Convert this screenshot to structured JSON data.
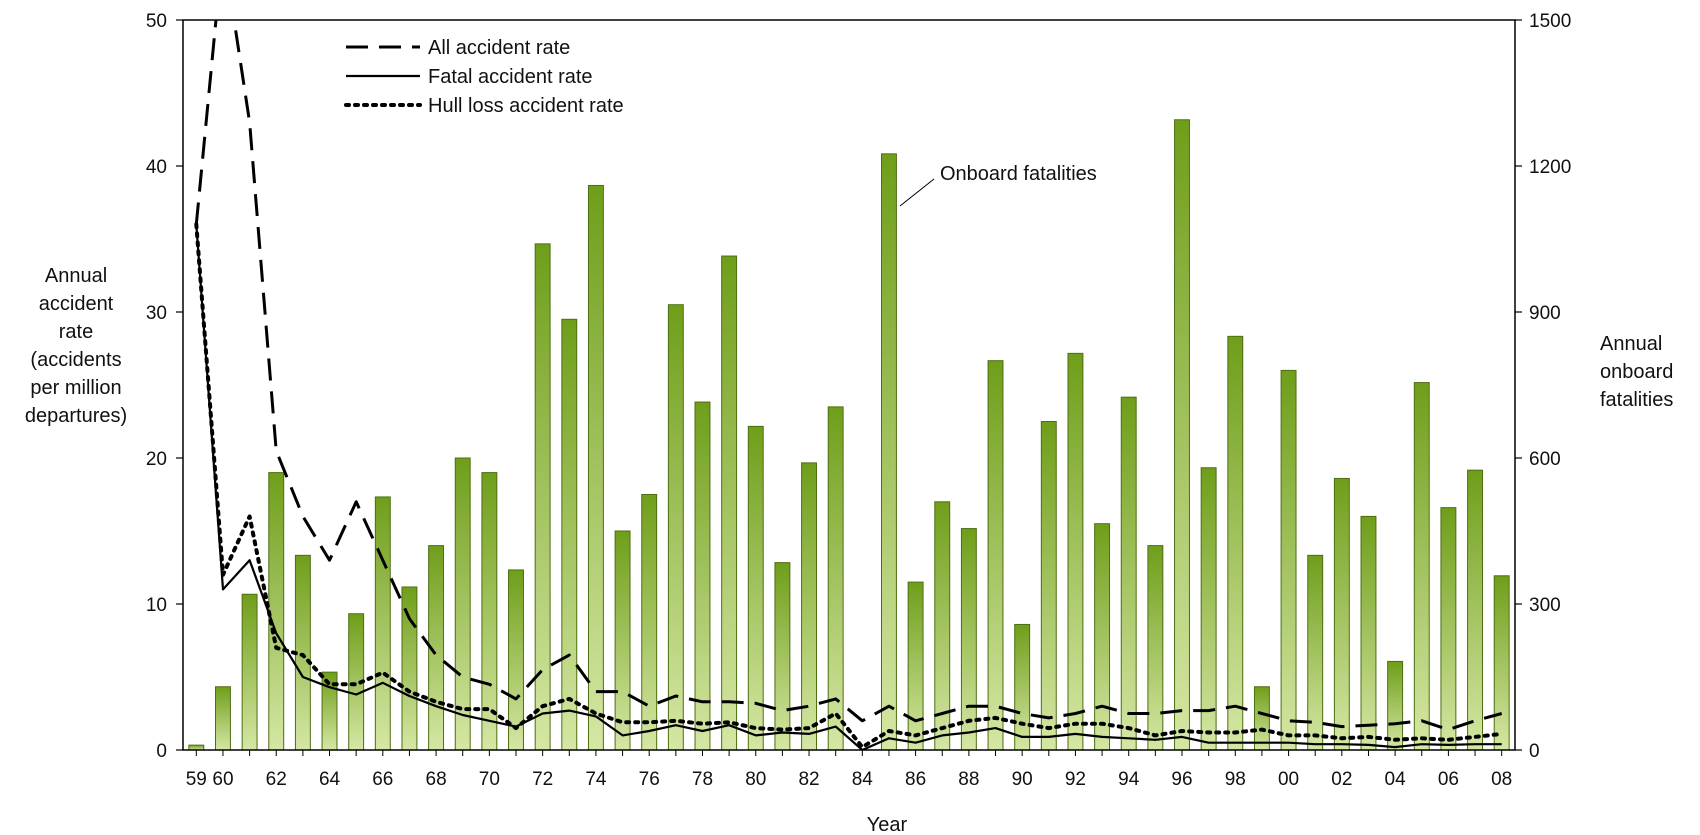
{
  "chart_data": {
    "type": "bar+line",
    "x_label": "Year",
    "x_ticks": [
      "59",
      "60",
      "62",
      "64",
      "66",
      "68",
      "70",
      "72",
      "74",
      "76",
      "78",
      "80",
      "82",
      "84",
      "86",
      "88",
      "90",
      "92",
      "94",
      "96",
      "98",
      "00",
      "02",
      "04",
      "06",
      "08"
    ],
    "years": [
      1959,
      1960,
      1961,
      1962,
      1963,
      1964,
      1965,
      1966,
      1967,
      1968,
      1969,
      1970,
      1971,
      1972,
      1973,
      1974,
      1975,
      1976,
      1977,
      1978,
      1979,
      1980,
      1981,
      1982,
      1983,
      1984,
      1985,
      1986,
      1987,
      1988,
      1989,
      1990,
      1991,
      1992,
      1993,
      1994,
      1995,
      1996,
      1997,
      1998,
      1999,
      2000,
      2001,
      2002,
      2003,
      2004,
      2005,
      2006,
      2007,
      2008
    ],
    "y_left": {
      "label_lines": [
        "Annual",
        "accident",
        "rate",
        "(accidents",
        "per million",
        "departures)"
      ],
      "range": [
        0,
        50
      ],
      "ticks": [
        "0",
        "10",
        "20",
        "30",
        "40",
        "50"
      ]
    },
    "y_right": {
      "label_lines": [
        "Annual",
        "onboard",
        "fatalities"
      ],
      "range": [
        0,
        1500
      ],
      "ticks": [
        "0",
        "300",
        "600",
        "900",
        "1200",
        "1500"
      ]
    },
    "bar_annotation": "Onboard fatalities",
    "legend_position": "top-left",
    "legend": [
      {
        "label": "All accident rate",
        "style": "dashed"
      },
      {
        "label": "Fatal accident rate",
        "style": "solid"
      },
      {
        "label": "Hull loss accident rate",
        "style": "dotted"
      }
    ],
    "bars": {
      "values": [
        10,
        130,
        320,
        570,
        400,
        160,
        280,
        520,
        335,
        420,
        600,
        570,
        370,
        1040,
        885,
        1160,
        450,
        525,
        915,
        715,
        1015,
        665,
        385,
        590,
        705,
        0,
        1225,
        345,
        510,
        455,
        800,
        258,
        675,
        815,
        465,
        725,
        420,
        1295,
        580,
        850,
        130,
        780,
        400,
        558,
        480,
        182,
        755,
        498,
        575,
        358
      ],
      "color": "#8db53a"
    },
    "series": [
      {
        "name": "All accident rate",
        "values": [
          36,
          55,
          43,
          20.5,
          16,
          13,
          17,
          13,
          9,
          6.5,
          5,
          4.5,
          3.5,
          5.5,
          6.5,
          4,
          4,
          3,
          3.7,
          3.3,
          3.3,
          3.2,
          2.7,
          3,
          3.5,
          2,
          3,
          2,
          2.5,
          3,
          3,
          2.5,
          2.2,
          2.5,
          3,
          2.5,
          2.5,
          2.7,
          2.7,
          3,
          2.5,
          2,
          1.9,
          1.6,
          1.7,
          1.8,
          2,
          1.4,
          2,
          2.5
        ]
      },
      {
        "name": "Fatal accident rate",
        "values": [
          36,
          11,
          13,
          8,
          5,
          4.3,
          3.8,
          4.6,
          3.7,
          3,
          2.4,
          2,
          1.6,
          2.5,
          2.7,
          2.3,
          1,
          1.3,
          1.7,
          1.3,
          1.7,
          1,
          1.2,
          1.1,
          1.6,
          0,
          0.8,
          0.5,
          1,
          1.2,
          1.5,
          0.9,
          0.9,
          1.1,
          0.9,
          0.8,
          0.7,
          0.9,
          0.5,
          0.5,
          0.5,
          0.5,
          0.4,
          0.4,
          0.35,
          0.2,
          0.4,
          0.35,
          0.4,
          0.4
        ]
      },
      {
        "name": "Hull loss accident rate",
        "values": [
          36,
          12,
          16,
          7,
          6.5,
          4.5,
          4.5,
          5.3,
          4,
          3.3,
          2.8,
          2.8,
          1.5,
          3,
          3.5,
          2.5,
          1.9,
          1.9,
          2,
          1.8,
          1.9,
          1.5,
          1.4,
          1.5,
          2.5,
          0.2,
          1.3,
          1,
          1.5,
          2,
          2.2,
          1.8,
          1.5,
          1.8,
          1.8,
          1.5,
          1,
          1.3,
          1.2,
          1.2,
          1.4,
          1,
          1,
          0.8,
          0.9,
          0.7,
          0.8,
          0.7,
          0.9,
          1.1
        ]
      }
    ]
  }
}
